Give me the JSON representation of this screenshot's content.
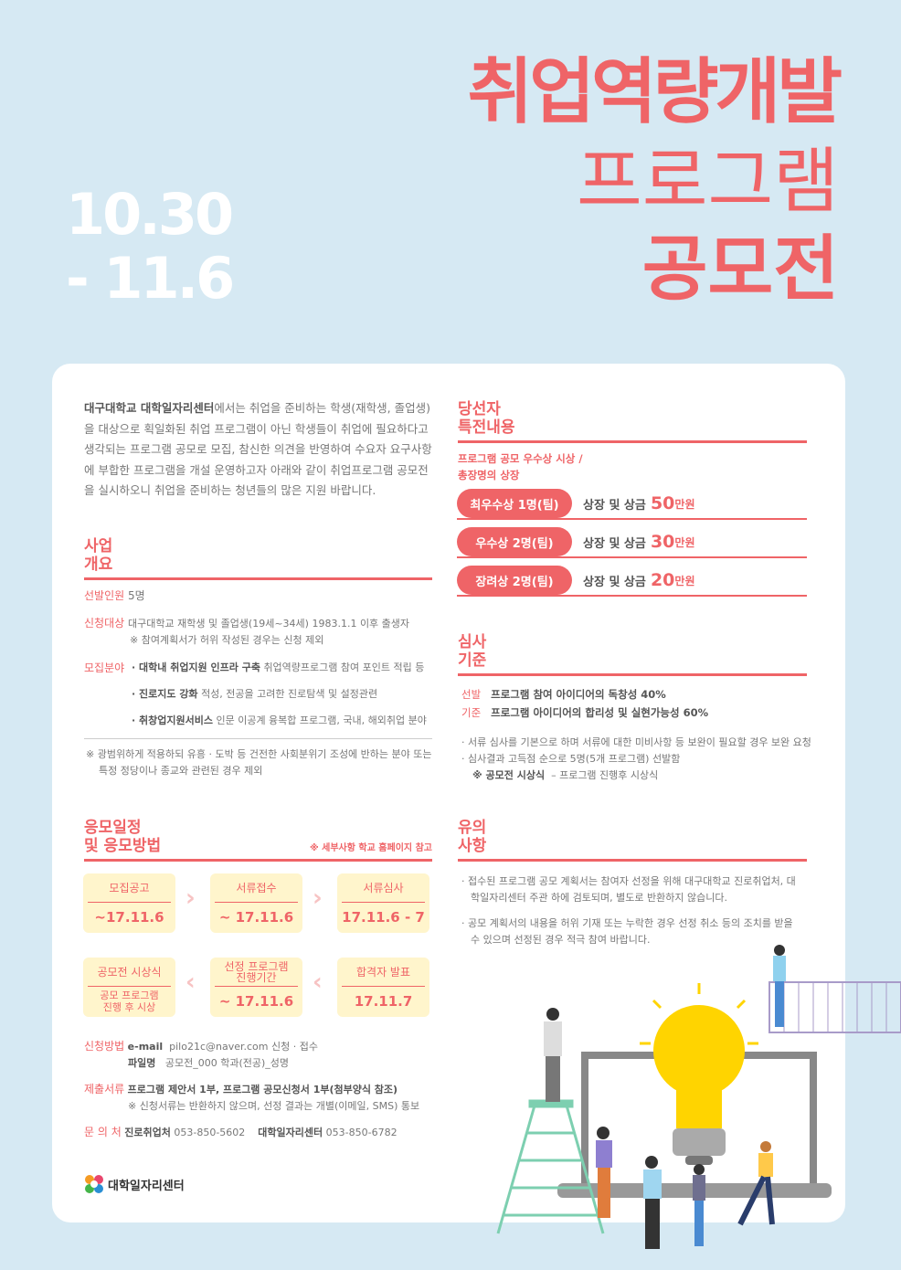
{
  "header": {
    "title_lines": [
      "취업역량개발",
      "프로그램",
      "공모전"
    ],
    "date_lines": [
      "10.30",
      "-  11.6"
    ]
  },
  "intro": {
    "org": "대구대학교 대학일자리센터",
    "text": "에서는 취업을 준비하는 학생(재학생, 졸업생)을 대상으로 획일화된 취업 프로그램이 아닌 학생들이 취업에 필요하다고 생각되는 프로그램 공모로 모집, 참신한 의견을 반영하여 수요자 요구사항에 부합한 프로그램을 개설 운영하고자 아래와 같이 취업프로그램 공모전을 실시하오니 취업을 준비하는 청년들의 많은 지원 바랍니다."
  },
  "overview": {
    "heading": [
      "사업",
      "개요"
    ],
    "selection_label": "선발인원",
    "selection_value": "5명",
    "target_label": "신청대상",
    "target_value": "대구대학교 재학생 및 졸업생(19세~34세) 1983.1.1 이후 출생자",
    "target_note": "※ 참여계획서가 허위 작성된 경우는 신청 제외",
    "field_label": "모집분야",
    "fields": [
      {
        "name": "· 대학내 취업지원 인프라 구축",
        "desc": "취업역량프로그램 참여 포인트 적립 등"
      },
      {
        "name": "· 진로지도 강화",
        "desc": "적성, 전공을 고려한 진로탐색 및 설정관련"
      },
      {
        "name": "· 취창업지원서비스",
        "desc": "인문 이공계 융복합 프로그램, 국내, 해외취업 분야"
      }
    ],
    "exclusion_note": [
      "※ 광범위하게 적용하되 유흥 · 도박 등 건전한 사회분위기 조성에 반하는 분야 또는",
      "특정 정당이나 종교와 관련된 경우 제외"
    ]
  },
  "benefits": {
    "heading": [
      "당선자",
      "특전내용"
    ],
    "sub": [
      "프로그램 공모 우수상 시상 /",
      "총장명의 상장"
    ],
    "prizes": [
      {
        "label": "최우수상 1명(팀)",
        "text": "상장 및 상금",
        "amount": "50",
        "unit": "만원"
      },
      {
        "label": "우수상 2명(팀)",
        "text": "상장 및 상금",
        "amount": "30",
        "unit": "만원"
      },
      {
        "label": "장려상 2명(팀)",
        "text": "상장 및 상금",
        "amount": "20",
        "unit": "만원"
      }
    ]
  },
  "criteria": {
    "heading": [
      "심사",
      "기준"
    ],
    "label1": "선발",
    "label2": "기준",
    "item1": "프로그램 참여 아이디어의 독창성 40%",
    "item2": "프로그램 아이디어의 합리성 및 실현가능성 60%",
    "notes": [
      "· 서류 심사를 기본으로 하며 서류에 대한 미비사항 등 보완이 필요할 경우 보완 요청",
      "· 심사결과 고득점 순으로 5명(5개 프로그램) 선발함"
    ],
    "ceremony_label": "※ 공모전 시상식",
    "ceremony_text": "–  프로그램 진행후 시상식"
  },
  "schedule": {
    "heading": [
      "응모일정",
      "및 응모방법"
    ],
    "note": "※ 세부사항 학교 홈페이지 참고",
    "steps": [
      {
        "title": "모집공고",
        "value": "~17.11.6"
      },
      {
        "title": "서류접수",
        "value": "~ 17.11.6"
      },
      {
        "title": "서류심사",
        "value": "17.11.6 - 7"
      },
      {
        "title": "합격자 발표",
        "value": "17.11.7"
      },
      {
        "title": "선정 프로그램 진행기간",
        "value": "~ 17.11.6"
      },
      {
        "title": "공모전 시상식",
        "value": "공모 프로그램 진행 후 시상"
      }
    ],
    "arrow_right": "›",
    "arrow_left": "‹",
    "method_label": "신청방법",
    "email_label": "e-mail",
    "email_value": "pilo21c@naver.com 신청 · 접수",
    "filename_label": "파일명",
    "filename_value": "공모전_000 학과(전공)_성명",
    "docs_label": "제출서류",
    "docs_value": "프로그램 제안서 1부, 프로그램 공모신청서 1부(첨부양식 참조)",
    "docs_note": "※ 신청서류는 반환하지 않으며, 선정 결과는 개별(이메일, SMS) 통보",
    "contact_label": "문 의 처",
    "contact1_name": "진로취업처",
    "contact1_phone": "053-850-5602",
    "contact2_name": "대학일자리센터",
    "contact2_phone": "053-850-6782"
  },
  "notes": {
    "heading": [
      "유의",
      "사항"
    ],
    "items": [
      "· 접수된 프로그램 공모 계획서는 참여자 선정을 위해 대구대학교 진로취업처, 대학일자리센터 주관 하에 검토되며, 별도로 반환하지 않습니다.",
      "· 공모 계획서의 내용을 허위 기재 또는 누락한 경우 선정 취소 등의 조치를 받을 수 있으며 선정된 경우 적극 참여 바랍니다."
    ]
  },
  "logo": {
    "text": "대학일자리센터"
  },
  "colors": {
    "accent": "#ef6467",
    "background": "#d6e9f3",
    "box": "#fff5cc",
    "bulb": "#ffd400"
  }
}
